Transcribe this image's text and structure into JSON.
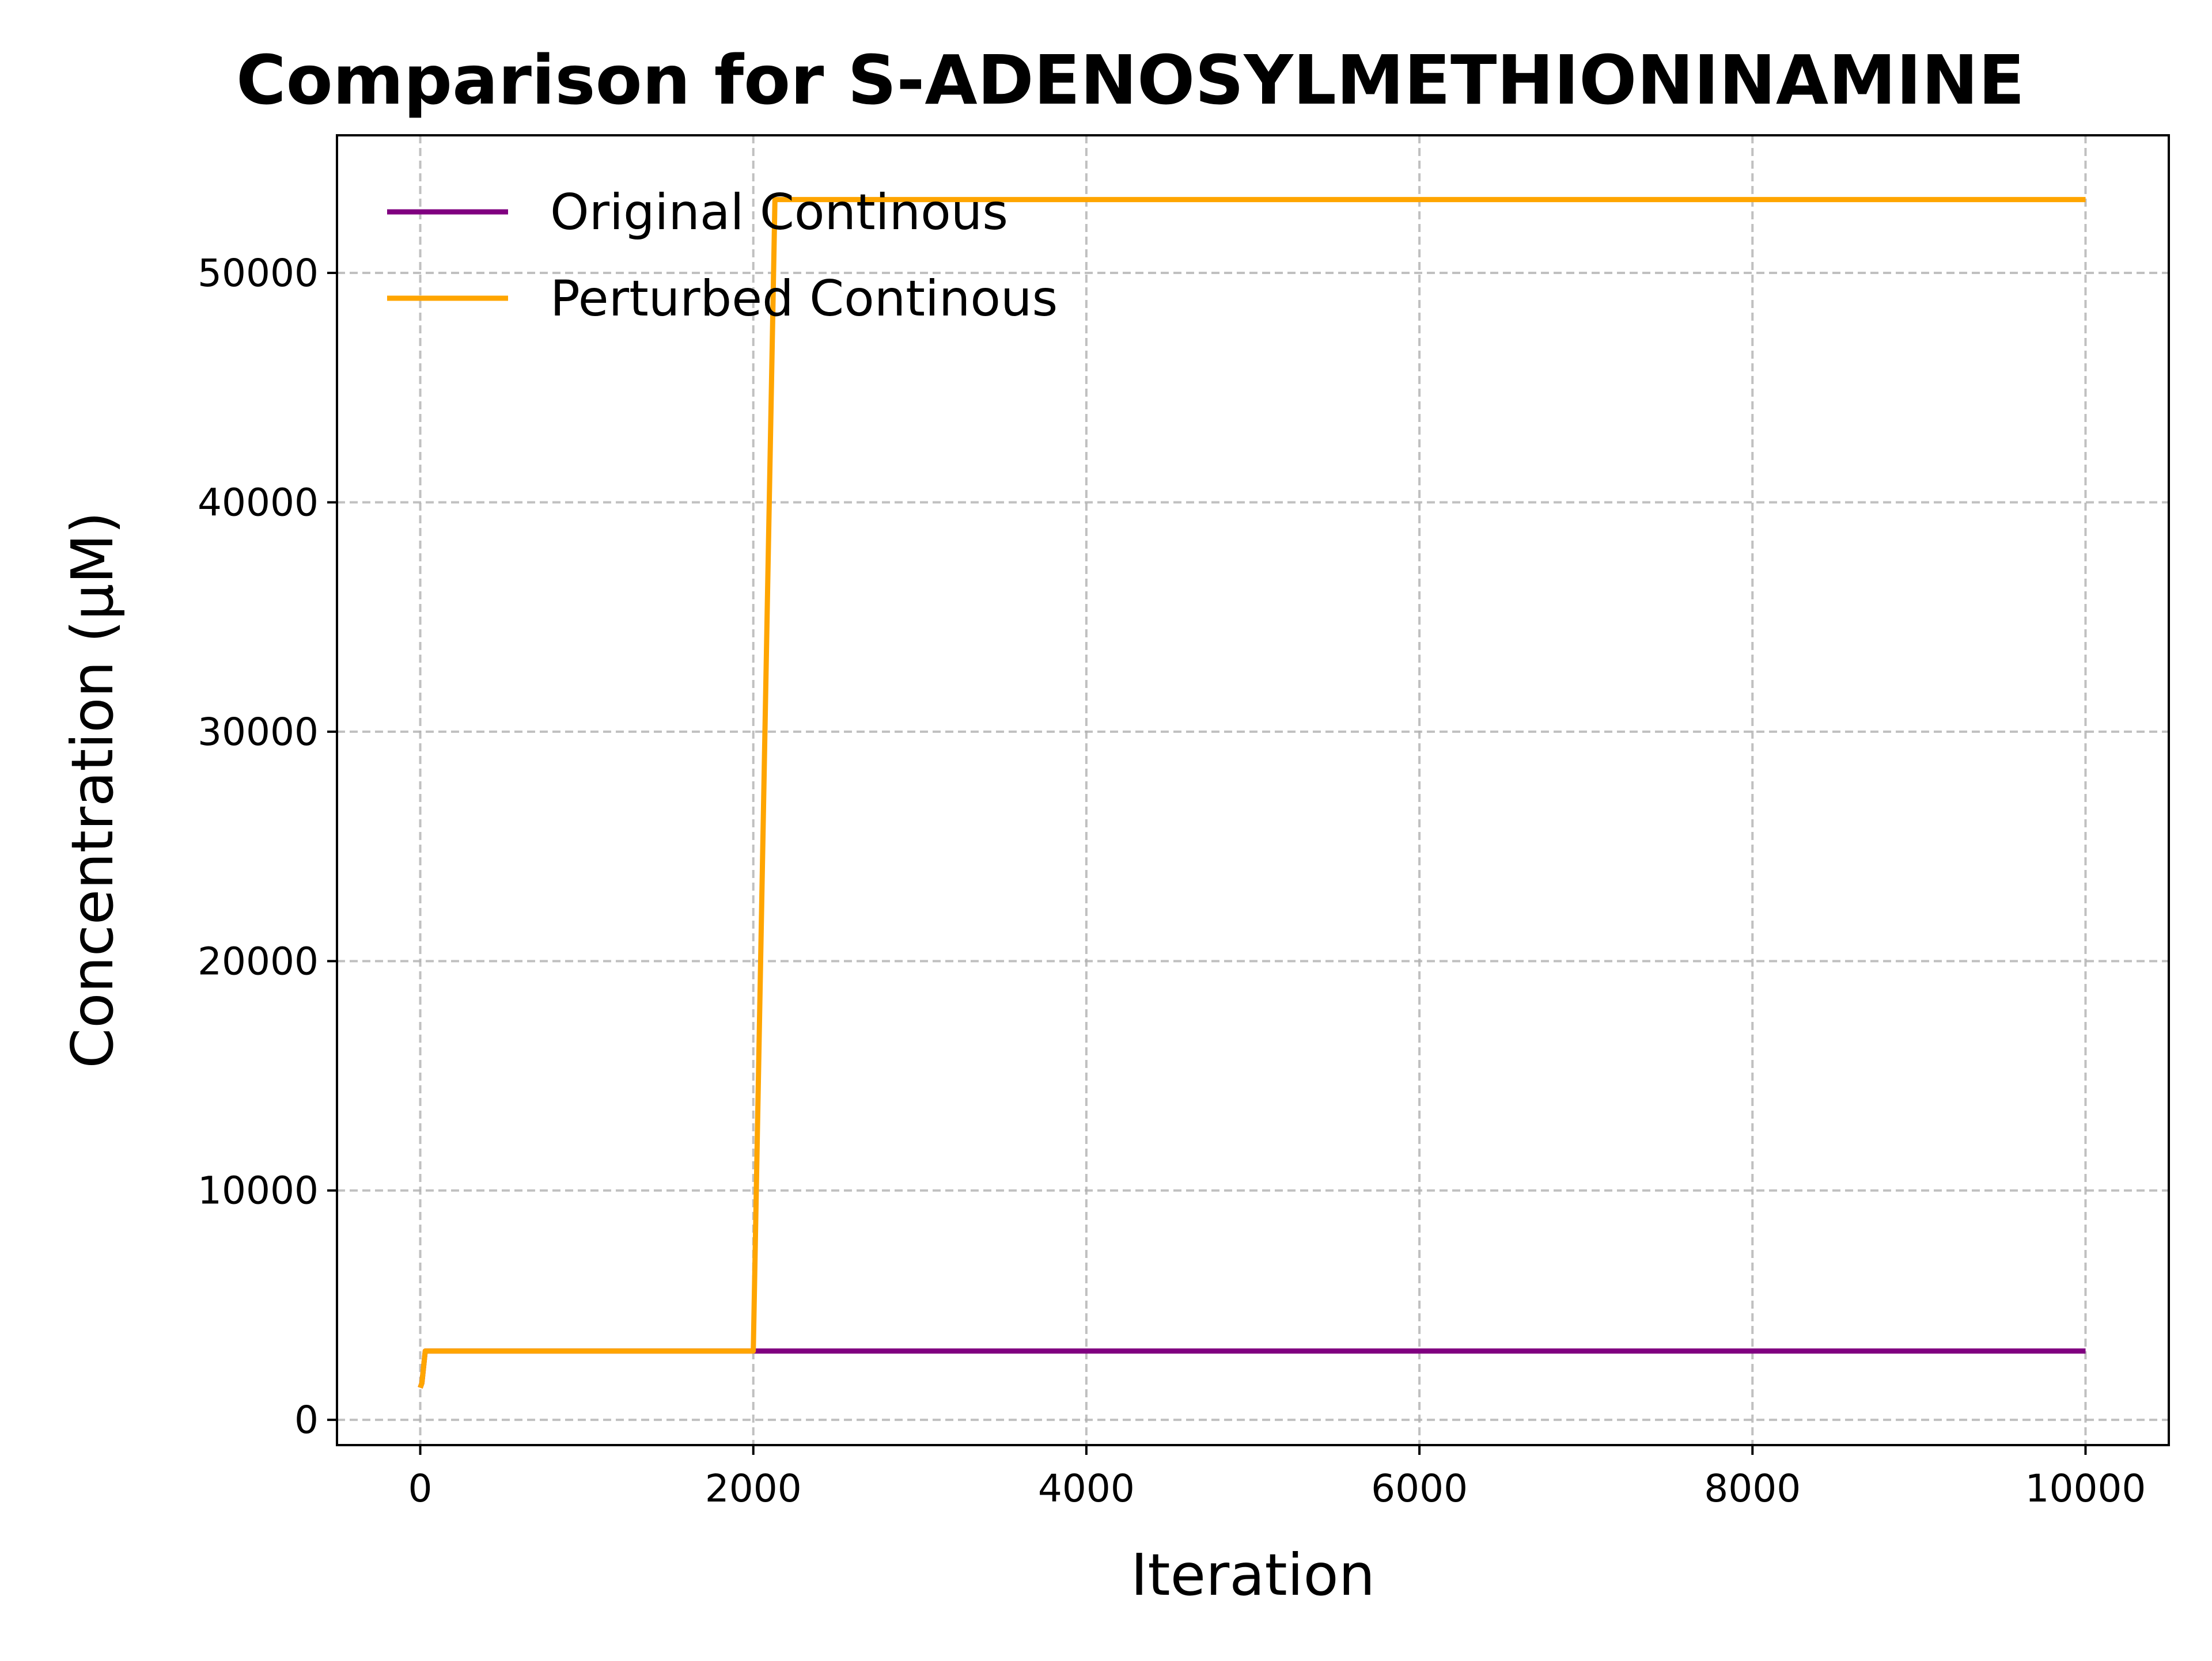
{
  "chart_data": {
    "type": "line",
    "title": "Comparison for S-ADENOSYLMETHIONINAMINE",
    "xlabel": "Iteration",
    "ylabel": "Concentration (μM)",
    "xlim": [
      -500,
      10500
    ],
    "ylim": [
      -1100,
      56000
    ],
    "xticks": [
      0,
      2000,
      4000,
      6000,
      8000,
      10000
    ],
    "yticks": [
      0,
      10000,
      20000,
      30000,
      40000,
      50000
    ],
    "grid": true,
    "legend_position": "upper-left",
    "series": [
      {
        "name": "Original Continous",
        "color": "#800080",
        "x": [
          0,
          10,
          30,
          2000,
          10000
        ],
        "y": [
          1400,
          1600,
          3000,
          3000,
          3000
        ]
      },
      {
        "name": "Perturbed Continous",
        "color": "#FFA500",
        "x": [
          0,
          10,
          30,
          2000,
          2130,
          10000
        ],
        "y": [
          1400,
          1600,
          3000,
          3000,
          53200,
          53200
        ]
      }
    ]
  }
}
